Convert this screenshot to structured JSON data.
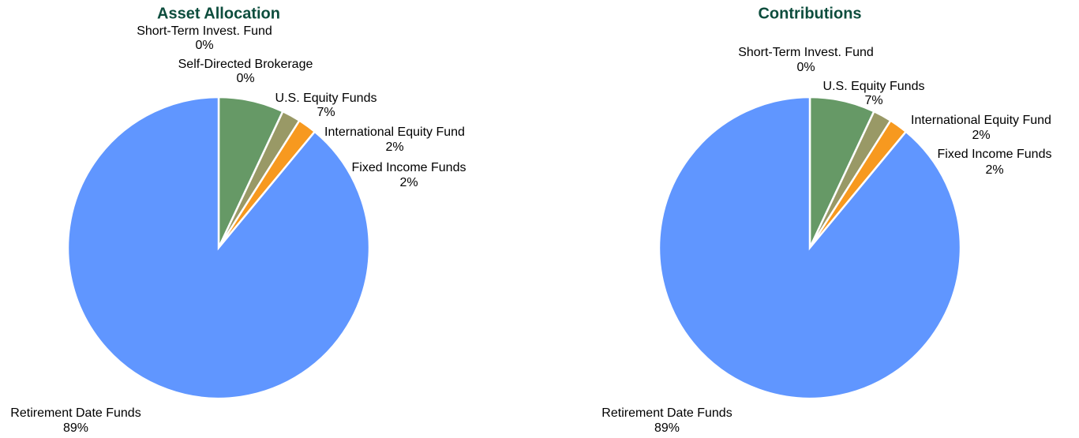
{
  "chart_data": [
    {
      "type": "pie",
      "title": "Asset Allocation",
      "categories": [
        "Short-Term Invest. Fund",
        "Self-Directed Brokerage",
        "U.S. Equity Funds",
        "International Equity Fund",
        "Fixed Income Funds",
        "Retirement Date Funds"
      ],
      "values": [
        0,
        0,
        7,
        2,
        2,
        89
      ],
      "value_labels": [
        "0%",
        "0%",
        "7%",
        "2%",
        "2%",
        "89%"
      ],
      "colors": [
        "#c0504d",
        "#8064a2",
        "#669966",
        "#999966",
        "#f7991f",
        "#6096ff"
      ]
    },
    {
      "type": "pie",
      "title": "Contributions",
      "categories": [
        "Short-Term Invest. Fund",
        "U.S. Equity Funds",
        "International Equity Fund",
        "Fixed Income Funds",
        "Retirement Date Funds"
      ],
      "values": [
        0,
        7,
        2,
        2,
        89
      ],
      "value_labels": [
        "0%",
        "7%",
        "2%",
        "2%",
        "89%"
      ],
      "colors": [
        "#c0504d",
        "#669966",
        "#999966",
        "#f7991f",
        "#6096ff"
      ]
    }
  ]
}
